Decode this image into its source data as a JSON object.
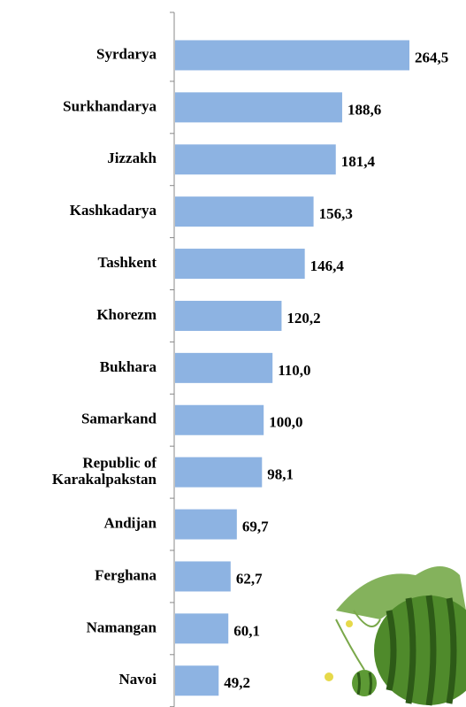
{
  "chart_data": {
    "type": "bar",
    "orientation": "horizontal",
    "categories": [
      "Syrdarya",
      "Surkhandarya",
      "Jizzakh",
      "Kashkadarya",
      "Tashkent",
      "Khorezm",
      "Bukhara",
      "Samarkand",
      "Republic of\nKarakalpakstan",
      "Andijan",
      "Ferghana",
      "Namangan",
      "Navoi"
    ],
    "values": [
      264.5,
      188.6,
      181.4,
      156.3,
      146.4,
      120.2,
      110.0,
      100.0,
      98.1,
      69.7,
      62.7,
      60.1,
      49.2
    ],
    "value_labels": [
      "264,5",
      "188,6",
      "181,4",
      "156,3",
      "146,4",
      "120,2",
      "110,0",
      "100,0",
      "98,1",
      "69,7",
      "62,7",
      "60,1",
      "49,2"
    ],
    "color": "#8db3e2"
  }
}
